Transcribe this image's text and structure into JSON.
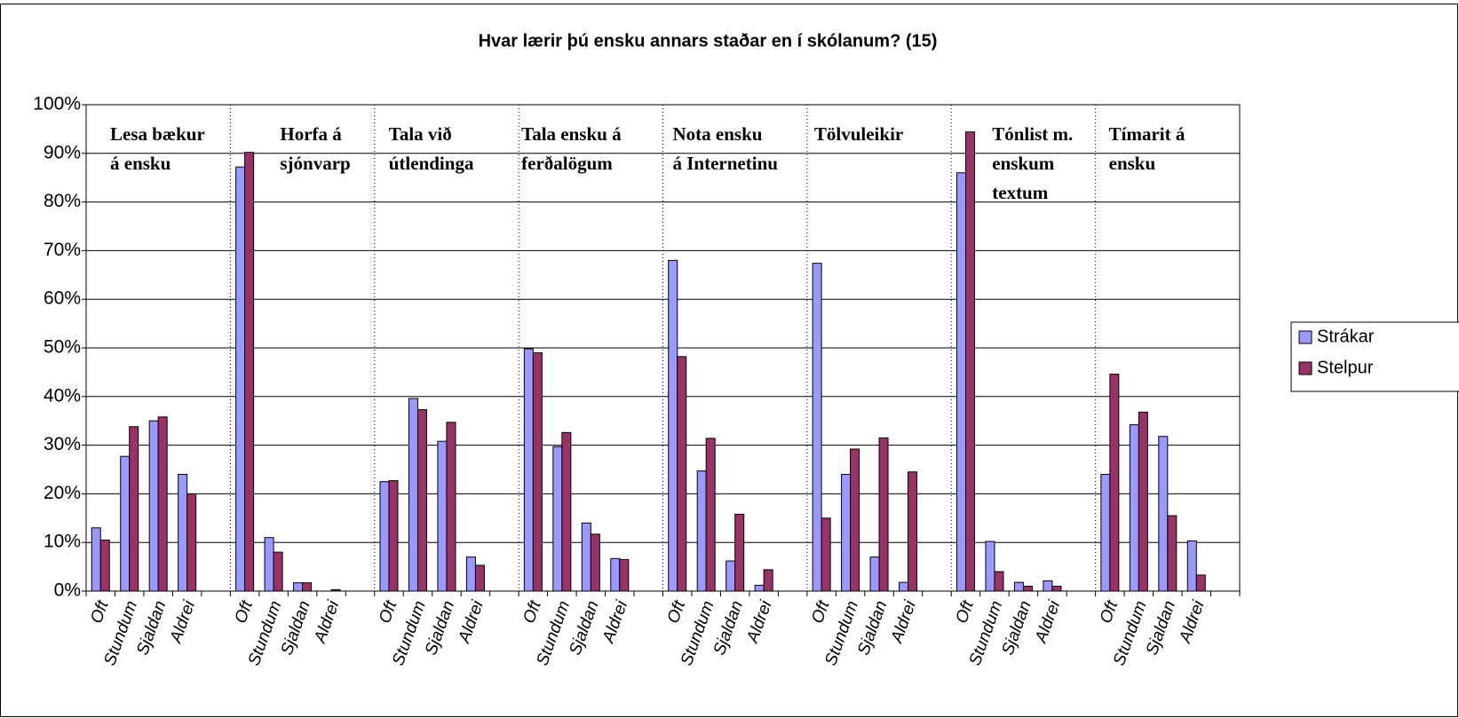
{
  "chart_data": {
    "type": "bar",
    "title": "Hvar lærir þú ensku annars staðar en í skólanum? (15)",
    "categories": [
      "Oft",
      "Stundum",
      "Sjaldan",
      "Aldrei",
      null,
      "Oft",
      "Stundum",
      "Sjaldan",
      "Aldrei",
      null,
      "Oft",
      "Stundum",
      "Sjaldan",
      "Aldrei",
      null,
      "Oft",
      "Stundum",
      "Sjaldan",
      "Aldrei",
      null,
      "Oft",
      "Stundum",
      "Sjaldan",
      "Aldrei",
      null,
      "Oft",
      "Stundum",
      "Sjaldan",
      "Aldrei",
      null,
      "Oft",
      "Stundum",
      "Sjaldan",
      "Aldrei",
      null,
      "Oft",
      "Stundum",
      "Sjaldan",
      "Aldrei",
      null
    ],
    "series": [
      {
        "name": "Strákar",
        "color": "#9999ff",
        "values": [
          13,
          27.7,
          35,
          24,
          null,
          87.2,
          11,
          1.7,
          0,
          null,
          22.5,
          39.6,
          30.8,
          7,
          null,
          49.8,
          29.7,
          14,
          6.7,
          null,
          68,
          24.7,
          6.2,
          1.2,
          null,
          67.4,
          24,
          7,
          1.8,
          null,
          86,
          10.2,
          1.8,
          2.1,
          null,
          24,
          34.2,
          31.8,
          10.3,
          null
        ]
      },
      {
        "name": "Stelpur",
        "color": "#993366",
        "values": [
          10.5,
          33.8,
          35.8,
          20,
          null,
          90.2,
          8,
          1.7,
          0.3,
          null,
          22.7,
          37.3,
          34.7,
          5.3,
          null,
          49,
          32.6,
          11.7,
          6.5,
          null,
          48.2,
          31.4,
          15.8,
          4.4,
          null,
          15,
          29.2,
          31.5,
          24.5,
          null,
          94.4,
          4,
          1,
          1,
          null,
          44.6,
          36.8,
          15.5,
          3.3,
          null
        ]
      }
    ],
    "group_labels": [
      [
        "Lesa bækur",
        "á ensku"
      ],
      [
        "Horfa á",
        "sjónvarp"
      ],
      [
        "Tala við",
        "útlendinga"
      ],
      [
        "Tala ensku á",
        "ferðalögum"
      ],
      [
        "Nota ensku",
        "á Internetinu"
      ],
      [
        "Tölvuleikir"
      ],
      [
        "Tónlist m.",
        "enskum",
        "textum"
      ],
      [
        "Tímarit  á",
        "ensku"
      ]
    ],
    "ylim": [
      0,
      100
    ],
    "yticks": [
      {
        "value": 0,
        "label": "0%"
      },
      {
        "value": 10,
        "label": "10%"
      },
      {
        "value": 20,
        "label": "20%"
      },
      {
        "value": 30,
        "label": "30%"
      },
      {
        "value": 40,
        "label": "40%"
      },
      {
        "value": 50,
        "label": "50%"
      },
      {
        "value": 60,
        "label": "60%"
      },
      {
        "value": 70,
        "label": "70%"
      },
      {
        "value": 80,
        "label": "80%"
      },
      {
        "value": 90,
        "label": "90%"
      },
      {
        "value": 100,
        "label": "100%"
      }
    ],
    "grid": true,
    "legend": "right"
  }
}
